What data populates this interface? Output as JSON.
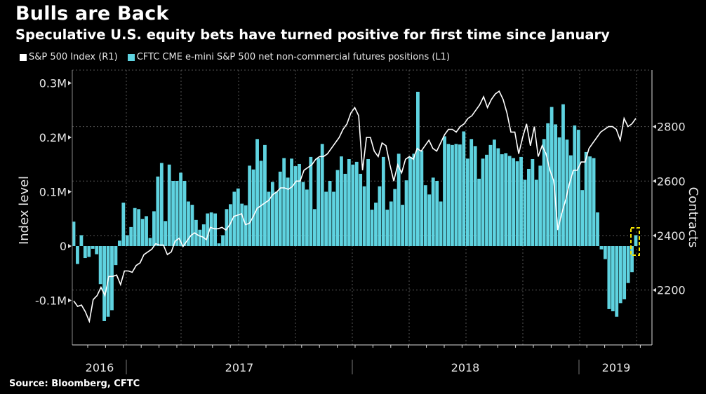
{
  "header": {
    "title": "Bulls are Back",
    "subtitle": "Speculative U.S. equity bets have turned positive for first time since January"
  },
  "legend": [
    {
      "label": "S&P 500 Index (R1)",
      "color": "#ffffff"
    },
    {
      "label": "CFTC CME e-mini S&P 500 net non-commercial futures positions (L1)",
      "color": "#5fd3e0"
    }
  ],
  "source": "Source: Bloomberg, CFTC",
  "chart_data": {
    "type": "bar+line",
    "title": "Bulls are Back",
    "subtitle": "Speculative U.S. equity bets have turned positive for first time since January",
    "left_axis": {
      "label": "Index level",
      "range": [
        -0.18,
        0.31
      ],
      "ticks": [
        0.3,
        0.2,
        0.1,
        0,
        -0.1
      ],
      "tick_labels": [
        "0.3M",
        "0.2M",
        "0.1M",
        "0",
        "-0.1M"
      ],
      "units": "millions of contracts"
    },
    "right_axis": {
      "label": "Contracts",
      "range": [
        2060,
        3000
      ],
      "ticks": [
        2800,
        2600,
        2400,
        2200
      ],
      "tick_labels": [
        "2800",
        "2600",
        "2400",
        "2200"
      ]
    },
    "x_axis": {
      "year_labels": [
        "2016",
        "2017",
        "2018",
        "2019"
      ],
      "range": "2016 to early 2019, weekly"
    },
    "grid": true,
    "legend_position": "top-left",
    "series": [
      {
        "name": "CFTC CME e-mini S&P 500 net non-commercial futures positions (L1)",
        "type": "bar",
        "axis": "left",
        "color": "#5fd3e0",
        "values_thousands": [
          45,
          -33,
          20,
          -22,
          -20,
          -5,
          -15,
          -70,
          -138,
          -130,
          -118,
          -35,
          10,
          80,
          20,
          35,
          70,
          68,
          50,
          55,
          15,
          64,
          128,
          153,
          46,
          150,
          120,
          120,
          135,
          120,
          82,
          76,
          48,
          30,
          40,
          60,
          62,
          60,
          5,
          20,
          68,
          77,
          100,
          106,
          78,
          75,
          148,
          141,
          197,
          157,
          186,
          100,
          118,
          100,
          137,
          162,
          126,
          161,
          147,
          151,
          118,
          104,
          164,
          68,
          162,
          188,
          100,
          120,
          100,
          140,
          165,
          133,
          160,
          150,
          155,
          133,
          110,
          160,
          67,
          80,
          110,
          164,
          67,
          82,
          105,
          170,
          76,
          121,
          164,
          170,
          284,
          176,
          112,
          95,
          126,
          120,
          82,
          202,
          188,
          186,
          188,
          187,
          211,
          161,
          197,
          184,
          124,
          161,
          168,
          186,
          196,
          180,
          169,
          171,
          166,
          162,
          156,
          164,
          122,
          142,
          160,
          122,
          148,
          197,
          226,
          256,
          224,
          200,
          261,
          196,
          167,
          222,
          214,
          103,
          173,
          165,
          162,
          62,
          -6,
          -24,
          -116,
          -120,
          -130,
          -105,
          -98,
          -68,
          -48,
          20
        ]
      },
      {
        "name": "S&P 500 Index (R1)",
        "type": "line",
        "axis": "right",
        "color": "#ffffff",
        "values": [
          2160,
          2140,
          2145,
          2120,
          2085,
          2165,
          2180,
          2210,
          2180,
          2250,
          2250,
          2255,
          2220,
          2270,
          2270,
          2265,
          2290,
          2300,
          2330,
          2340,
          2350,
          2370,
          2365,
          2365,
          2330,
          2340,
          2380,
          2390,
          2360,
          2380,
          2400,
          2410,
          2400,
          2395,
          2385,
          2430,
          2425,
          2425,
          2430,
          2420,
          2440,
          2470,
          2475,
          2480,
          2440,
          2445,
          2470,
          2500,
          2510,
          2520,
          2530,
          2550,
          2560,
          2575,
          2575,
          2570,
          2580,
          2600,
          2600,
          2640,
          2650,
          2660,
          2680,
          2690,
          2690,
          2700,
          2720,
          2740,
          2760,
          2790,
          2810,
          2850,
          2870,
          2840,
          2640,
          2760,
          2760,
          2710,
          2690,
          2740,
          2730,
          2660,
          2600,
          2660,
          2630,
          2680,
          2690,
          2680,
          2720,
          2710,
          2730,
          2750,
          2720,
          2710,
          2740,
          2770,
          2790,
          2790,
          2780,
          2800,
          2810,
          2830,
          2840,
          2860,
          2880,
          2910,
          2870,
          2900,
          2920,
          2930,
          2900,
          2850,
          2780,
          2780,
          2700,
          2760,
          2810,
          2730,
          2800,
          2690,
          2730,
          2700,
          2640,
          2600,
          2420,
          2480,
          2530,
          2590,
          2640,
          2640,
          2670,
          2670,
          2720,
          2740,
          2760,
          2780,
          2790,
          2800,
          2800,
          2790,
          2750,
          2830,
          2800,
          2810,
          2830
        ]
      }
    ],
    "annotation": "yellow dashed box highlighting latest positive bar"
  }
}
